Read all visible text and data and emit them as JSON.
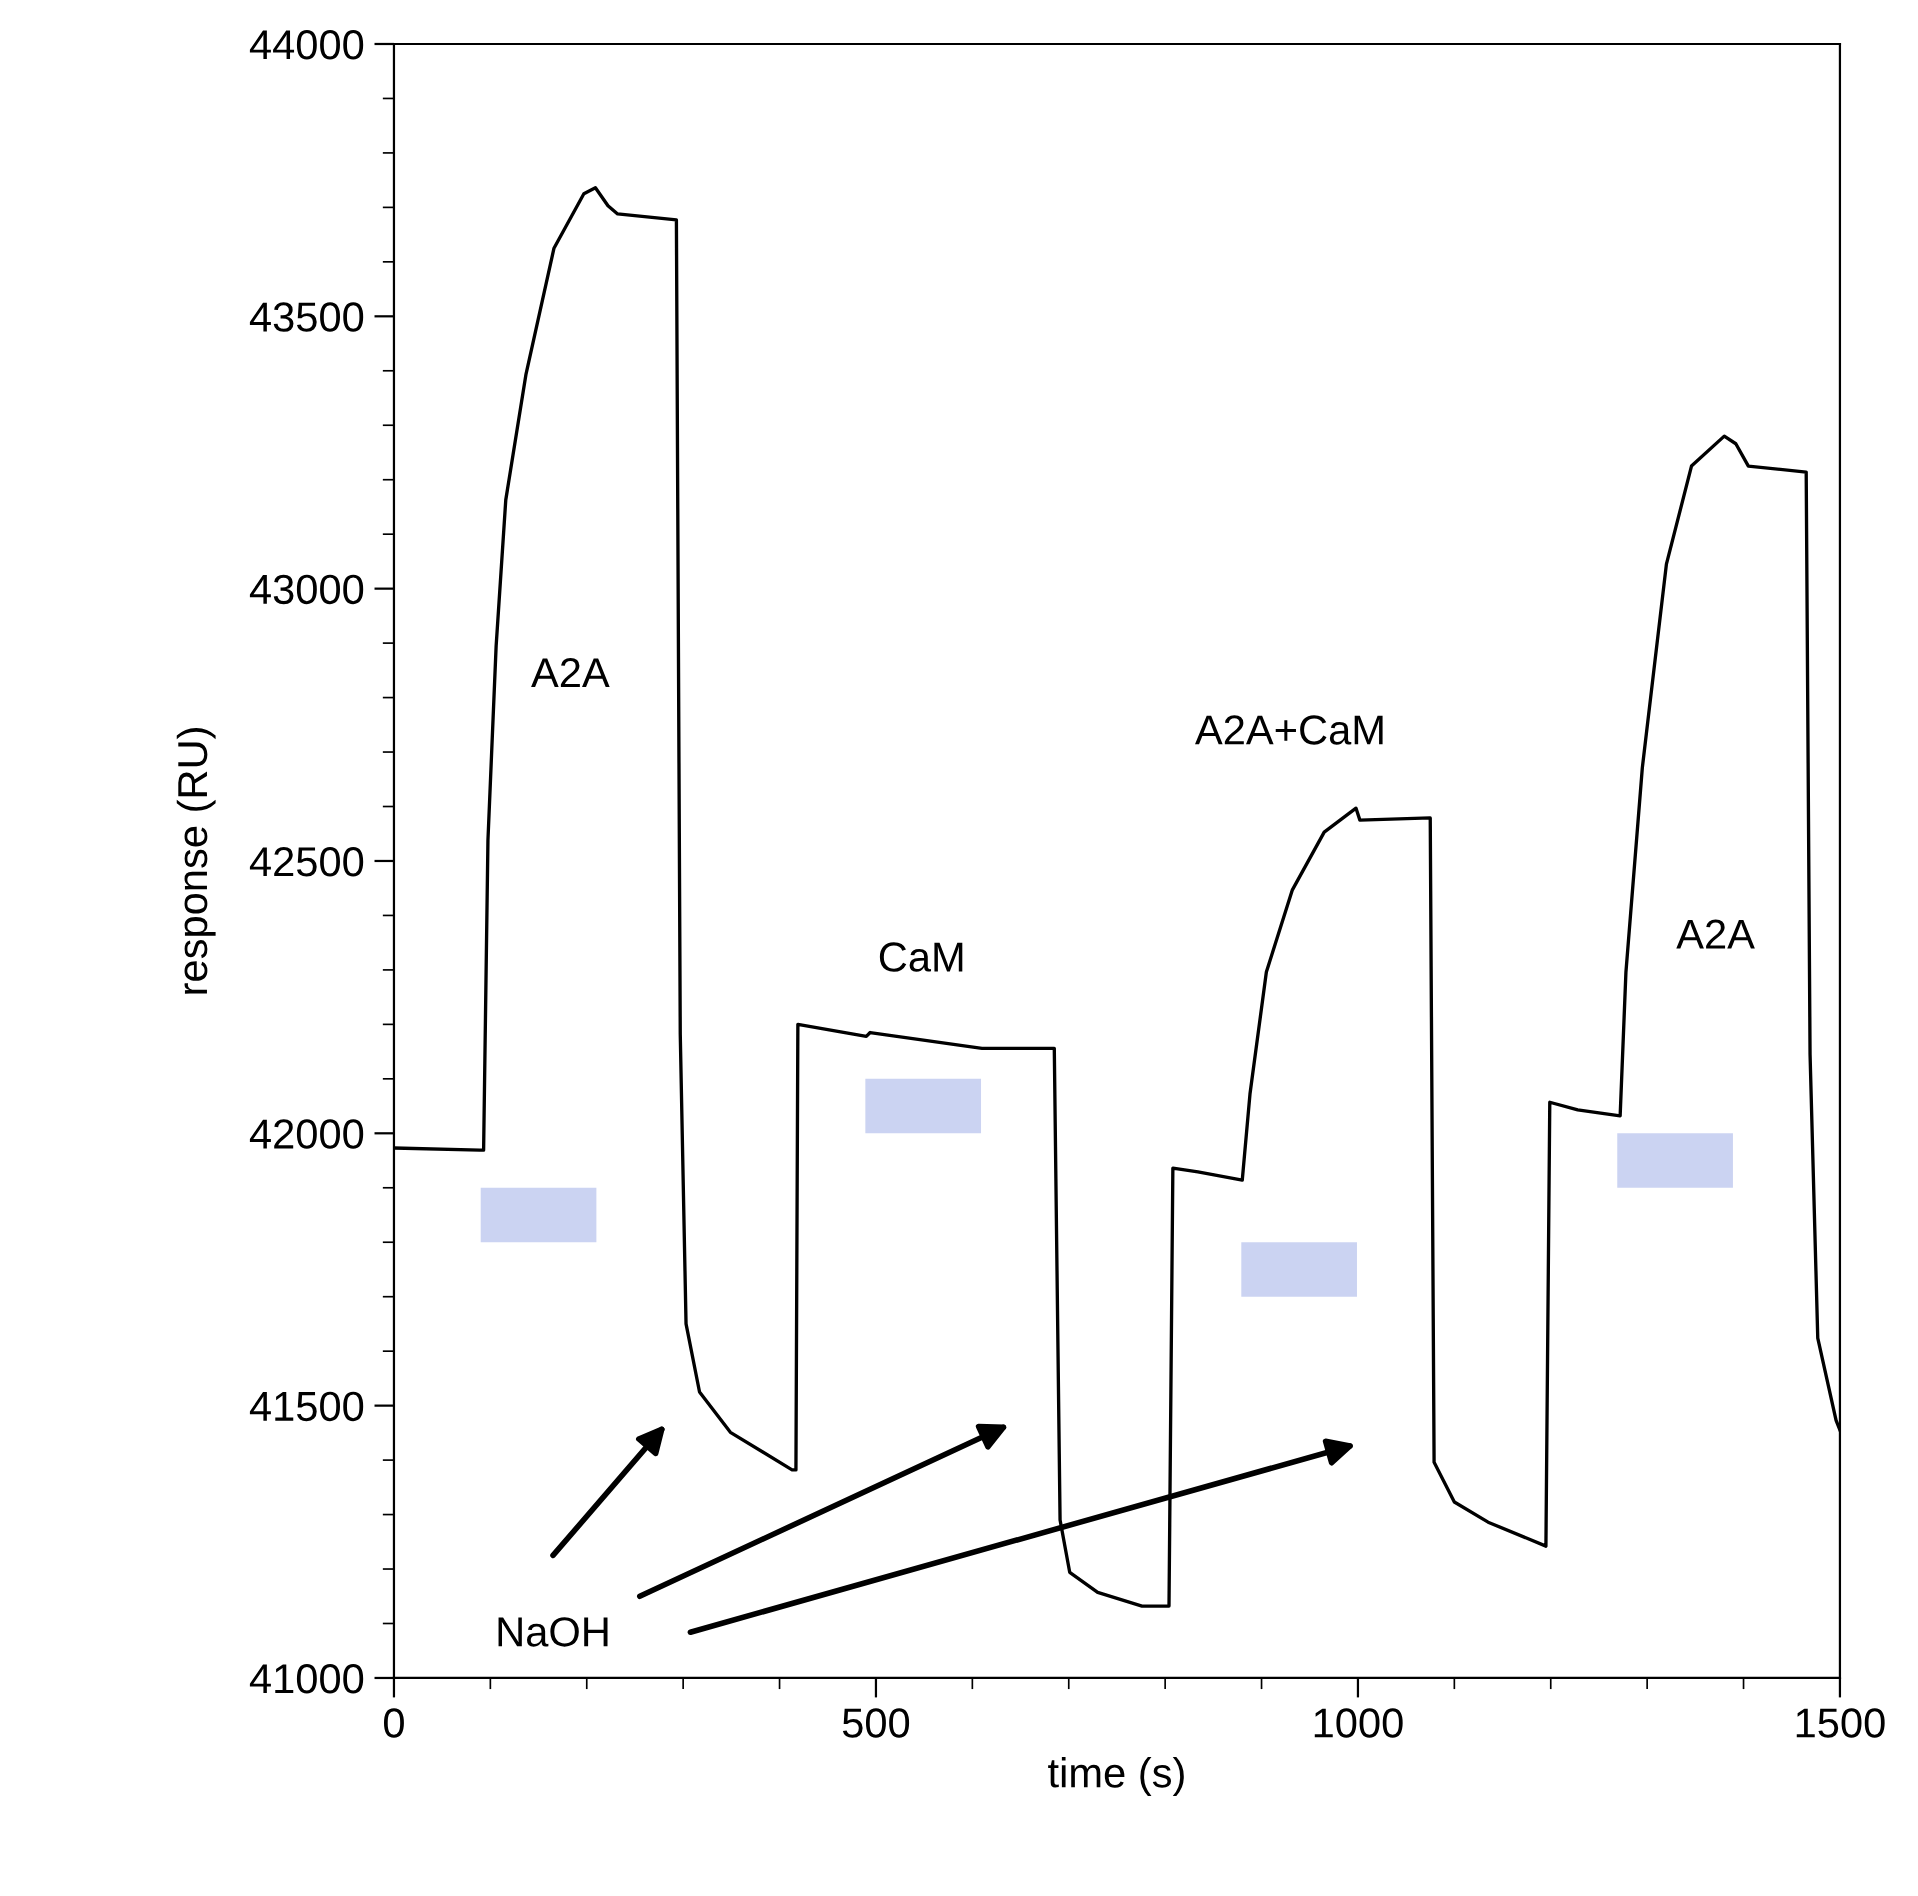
{
  "chart_data": {
    "type": "line",
    "xlabel": "time (s)",
    "ylabel": "response (RU)",
    "xlim": [
      0,
      1500
    ],
    "xticks": [
      0,
      500,
      1000,
      1500
    ],
    "ylim": [
      41000,
      44000
    ],
    "yticks": [
      41000,
      41500,
      42000,
      42500,
      43000,
      43500,
      44000
    ],
    "grid": false,
    "marker": "none",
    "line_style": "solid",
    "series": [
      {
        "color": "#000000",
        "x": [
          0,
          89,
          93,
          97.5,
          106,
          116,
          137,
          166,
          197,
          209,
          222,
          232,
          293,
          297,
          303,
          317,
          349,
          413,
          417,
          419,
          490,
          494,
          610,
          685,
          691,
          701,
          730,
          776,
          804,
          808,
          834,
          880,
          888,
          905,
          932,
          965,
          998,
          1002,
          1075,
          1079,
          1100,
          1135,
          1195,
          1199,
          1228,
          1272,
          1278,
          1295,
          1320,
          1346,
          1380,
          1392,
          1405,
          1465,
          1469,
          1477,
          1496,
          1500
        ],
        "values": [
          41973,
          41969,
          41969,
          42538,
          42895,
          43163,
          43394,
          43625,
          43725,
          43736,
          43703,
          43688,
          43677,
          42182,
          41650,
          41525,
          41451,
          41382,
          41382,
          42200,
          42178,
          42185,
          42156,
          42156,
          41290,
          41194,
          41157,
          41132,
          41132,
          41936,
          41929,
          41914,
          42072,
          42296,
          42447,
          42553,
          42597,
          42575,
          42579,
          41396,
          41323,
          41286,
          41242,
          42057,
          42043,
          42032,
          42296,
          42671,
          43045,
          43225,
          43280,
          43266,
          43225,
          43214,
          42145,
          41624,
          41473,
          41455
        ]
      },
      {
        "type": "bar",
        "color": "#cbd3f2",
        "x": [
          150,
          549,
          939,
          1329
        ],
        "base": [
          41800,
          42000,
          41700,
          41900
        ],
        "values": [
          100,
          100,
          100,
          100
        ]
      }
    ],
    "annotations": [
      "A2A",
      "CaM",
      "A2A+CaM",
      "A2A",
      "NaOH"
    ]
  }
}
